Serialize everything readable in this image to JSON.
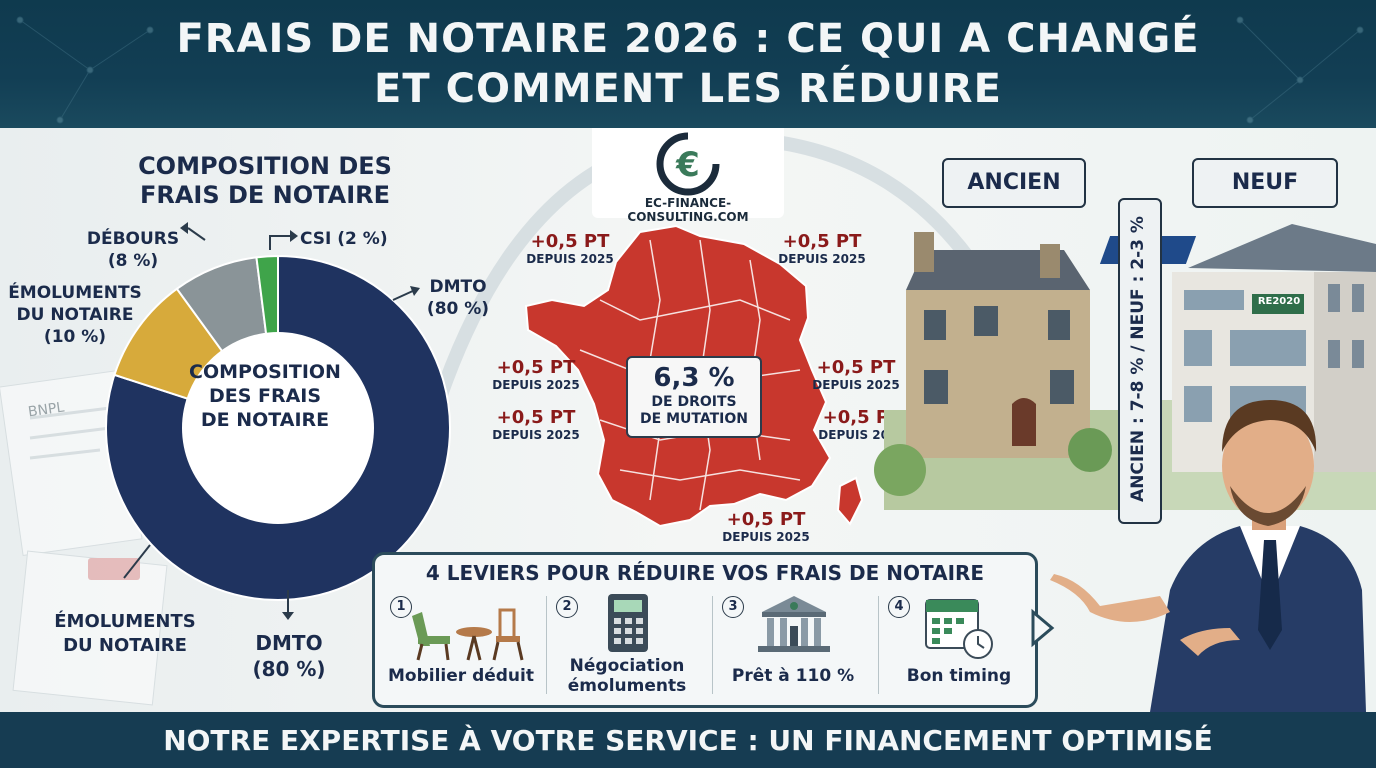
{
  "header": {
    "title_line1": "FRAIS DE NOTAIRE 2026 : CE QUI A CHANGÉ",
    "title_line2": "ET COMMENT LES RÉDUIRE"
  },
  "logo": {
    "text": "EC-FINANCE-CONSULTING.COM",
    "icon": "euro-icon"
  },
  "composition": {
    "title_line1": "COMPOSITION DES",
    "title_line2": "FRAIS DE NOTAIRE",
    "center_line1": "COMPOSITION",
    "center_line2": "DES FRAIS",
    "center_line3": "DE NOTAIRE",
    "labels": {
      "debours_1": "DÉBOURS",
      "debours_2": "(8 %)",
      "csi": "CSI (2 %)",
      "emol_1": "ÉMOLUMENTS",
      "emol_2": "DU NOTAIRE",
      "emol_3": "(10 %)",
      "dmto_1": "DMTO",
      "dmto_2": "(80 %)",
      "emol_bottom_1": "ÉMOLUMENTS",
      "emol_bottom_2": "DU NOTAIRE",
      "dmto_bottom_1": "DMTO",
      "dmto_bottom_2": "(80 %)"
    }
  },
  "chart_data": {
    "type": "pie",
    "categories": [
      "DMTO",
      "Émoluments du notaire",
      "Débours",
      "CSI"
    ],
    "values": [
      80,
      10,
      8,
      2
    ],
    "unit": "%",
    "colors": [
      "#1f3360",
      "#d7aa3b",
      "#8a9498",
      "#3fa44a"
    ],
    "title": "COMPOSITION DES FRAIS DE NOTAIRE"
  },
  "map": {
    "increase": "+0,5 PT",
    "since": "DEPUIS 2025",
    "center_value": "6,3 %",
    "center_line1": "DE DROITS",
    "center_line2": "DE MUTATION",
    "color": "#c8372d"
  },
  "property": {
    "ancien": "ANCIEN",
    "neuf": "NEUF",
    "rates": "ANCIEN : 7-8 % / NEUF : 2-3 %",
    "label_re2020": "RE2020"
  },
  "levers": {
    "title": "4 LEVIERS POUR RÉDUIRE VOS FRAIS DE NOTAIRE",
    "items": [
      {
        "num": "1",
        "line1": "Mobilier déduit",
        "line2": "",
        "icon": "furniture-icon"
      },
      {
        "num": "2",
        "line1": "Négociation",
        "line2": "émoluments",
        "icon": "calculator-icon"
      },
      {
        "num": "3",
        "line1": "Prêt à 110 %",
        "line2": "",
        "icon": "bank-icon"
      },
      {
        "num": "4",
        "line1": "Bon timing",
        "line2": "",
        "icon": "calendar-clock-icon"
      }
    ]
  },
  "footer": {
    "text": "NOTRE EXPERTISE À VOTRE SERVICE : UN FINANCEMENT OPTIMISÉ"
  },
  "decor": {
    "bnpl": "BNPL"
  }
}
